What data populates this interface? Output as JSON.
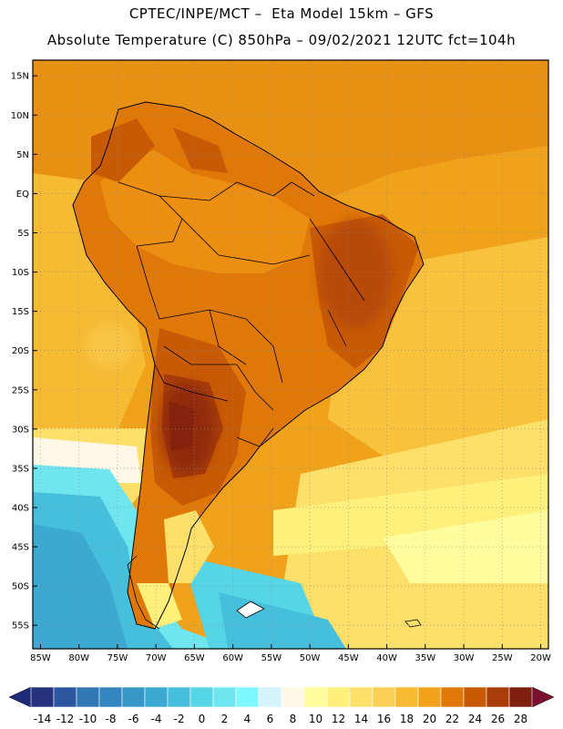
{
  "header": {
    "line1": "CPTEC/INPE/MCT –  Eta Model 15km – GFS",
    "line2": "Absolute Temperature (C) 850hPa – 09/02/2021 12UTC fct=104h"
  },
  "map": {
    "region": "South America",
    "lon_range": [
      -86,
      -19
    ],
    "lat_range": [
      -58,
      17
    ],
    "lat_ticks": [
      "15N",
      "10N",
      "5N",
      "EQ",
      "5S",
      "10S",
      "15S",
      "20S",
      "25S",
      "30S",
      "35S",
      "40S",
      "45S",
      "50S",
      "55S"
    ],
    "lon_ticks": [
      "85W",
      "80W",
      "75W",
      "70W",
      "65W",
      "60W",
      "55W",
      "50W",
      "45W",
      "40W",
      "35W",
      "30W",
      "25W",
      "20W"
    ]
  },
  "colorbar": {
    "labels": [
      "-14",
      "-12",
      "-10",
      "-8",
      "-6",
      "-4",
      "-2",
      "0",
      "2",
      "4",
      "6",
      "8",
      "10",
      "12",
      "14",
      "16",
      "18",
      "20",
      "22",
      "24",
      "26",
      "28"
    ],
    "colors": [
      "#27327f",
      "#2c57a0",
      "#3077b5",
      "#3386c0",
      "#3797c7",
      "#3ca9d0",
      "#45bfdc",
      "#55d5e6",
      "#6fe6ef",
      "#7ff7ff",
      "#d4f3fb",
      "#fff8e6",
      "#fffc9e",
      "#fef07a",
      "#fde069",
      "#fbcf54",
      "#f6ba33",
      "#f0a21a",
      "#e07807",
      "#c85a06",
      "#a83d0a",
      "#7f1f10"
    ],
    "min_color": "#1d2a78",
    "max_color": "#7a0f2e"
  }
}
